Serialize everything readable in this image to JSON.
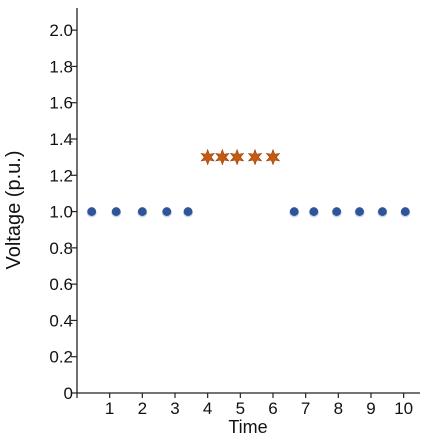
{
  "chart_data": {
    "type": "scatter",
    "xlabel": "Time",
    "ylabel": "Voltage (p.u.)",
    "xlim": [
      0,
      10.5
    ],
    "ylim": [
      0,
      2.1
    ],
    "grid": false,
    "legend": "none",
    "x_ticks": [
      "1",
      "2",
      "3",
      "4",
      "5",
      "6",
      "7",
      "8",
      "9",
      "10"
    ],
    "y_ticks": [
      "0",
      "0.2",
      "0.4",
      "0.6",
      "0.8",
      "1.0",
      "1.2",
      "1.4",
      "1.6",
      "1.8",
      "2.0"
    ],
    "series": [
      {
        "marker": "circle",
        "color": "#2e5597",
        "points": [
          {
            "x": 0.45,
            "y": 1.0
          },
          {
            "x": 1.2,
            "y": 1.0
          },
          {
            "x": 2.0,
            "y": 1.0
          },
          {
            "x": 2.75,
            "y": 1.0
          },
          {
            "x": 3.4,
            "y": 1.0
          }
        ]
      },
      {
        "marker": "star",
        "color": "#c55a11",
        "points": [
          {
            "x": 4.0,
            "y": 1.3
          },
          {
            "x": 4.45,
            "y": 1.3
          },
          {
            "x": 4.9,
            "y": 1.3
          },
          {
            "x": 5.45,
            "y": 1.3
          },
          {
            "x": 6.0,
            "y": 1.3
          }
        ]
      },
      {
        "marker": "circle",
        "color": "#2e5597",
        "points": [
          {
            "x": 6.65,
            "y": 1.0
          },
          {
            "x": 7.25,
            "y": 1.0
          },
          {
            "x": 7.95,
            "y": 1.0
          },
          {
            "x": 8.65,
            "y": 1.0
          },
          {
            "x": 9.35,
            "y": 1.0
          },
          {
            "x": 10.05,
            "y": 1.0
          }
        ]
      }
    ]
  }
}
